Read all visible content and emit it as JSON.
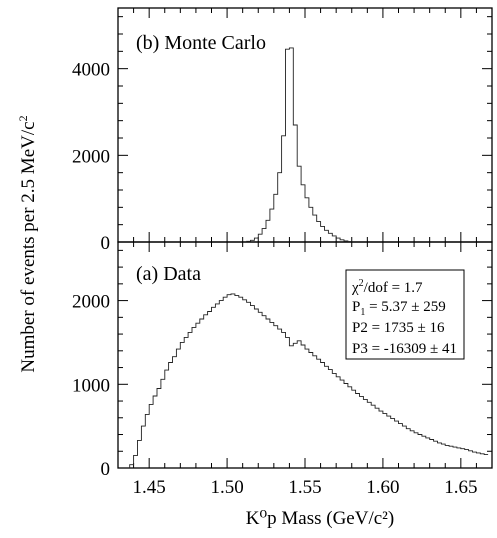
{
  "chart_data": [
    {
      "type": "histogram",
      "panel_label": "(b)  Monte Carlo",
      "ylabel": "Number of events per 2.5 MeV/c",
      "ylabel_sup": "2",
      "xlim": [
        1.43,
        1.67
      ],
      "ylim": [
        0,
        5400
      ],
      "yticks": [
        0,
        2000,
        4000
      ],
      "ytick_labels": [
        "0",
        "2000",
        "4000"
      ],
      "bin_width": 0.0025,
      "bins": [
        [
          1.5125,
          15
        ],
        [
          1.515,
          40
        ],
        [
          1.5175,
          90
        ],
        [
          1.52,
          180
        ],
        [
          1.5225,
          310
        ],
        [
          1.525,
          500
        ],
        [
          1.5275,
          760
        ],
        [
          1.53,
          1100
        ],
        [
          1.5325,
          1600
        ],
        [
          1.535,
          2450
        ],
        [
          1.5375,
          4450
        ],
        [
          1.54,
          4480
        ],
        [
          1.5425,
          2700
        ],
        [
          1.545,
          1750
        ],
        [
          1.5475,
          1320
        ],
        [
          1.55,
          1020
        ],
        [
          1.5525,
          800
        ],
        [
          1.555,
          620
        ],
        [
          1.5575,
          470
        ],
        [
          1.56,
          360
        ],
        [
          1.5625,
          270
        ],
        [
          1.565,
          200
        ],
        [
          1.5675,
          140
        ],
        [
          1.57,
          90
        ],
        [
          1.5725,
          50
        ],
        [
          1.575,
          25
        ],
        [
          1.5775,
          10
        ]
      ]
    },
    {
      "type": "histogram",
      "panel_label": "(a)  Data",
      "xlabel": "K⁰p Mass (GeV/c²)",
      "xlim": [
        1.43,
        1.67
      ],
      "ylim": [
        0,
        2700
      ],
      "xticks": [
        1.45,
        1.5,
        1.55,
        1.6,
        1.65
      ],
      "xtick_labels": [
        "1.45",
        "1.50",
        "1.55",
        "1.60",
        "1.65"
      ],
      "yticks": [
        0,
        1000,
        2000
      ],
      "ytick_labels": [
        "0",
        "1000",
        "2000"
      ],
      "bin_width": 0.0025,
      "fit_stats": [
        {
          "main": "χ",
          "sup": "2",
          "rest": "/dof = 1.7"
        },
        {
          "main": "P",
          "sub": "1",
          "rest": " = 5.37 ± 259"
        },
        {
          "main": "P2 = 1735 ± 16"
        },
        {
          "main": "P3 = -16309 ± 41"
        }
      ],
      "bins": [
        [
          1.4375,
          40
        ],
        [
          1.44,
          150
        ],
        [
          1.4425,
          330
        ],
        [
          1.445,
          500
        ],
        [
          1.4475,
          640
        ],
        [
          1.45,
          760
        ],
        [
          1.4525,
          860
        ],
        [
          1.455,
          950
        ],
        [
          1.4575,
          1060
        ],
        [
          1.46,
          1170
        ],
        [
          1.4625,
          1260
        ],
        [
          1.465,
          1330
        ],
        [
          1.4675,
          1420
        ],
        [
          1.47,
          1500
        ],
        [
          1.4725,
          1560
        ],
        [
          1.475,
          1620
        ],
        [
          1.4775,
          1680
        ],
        [
          1.48,
          1730
        ],
        [
          1.4825,
          1780
        ],
        [
          1.485,
          1830
        ],
        [
          1.4875,
          1870
        ],
        [
          1.49,
          1920
        ],
        [
          1.4925,
          1960
        ],
        [
          1.495,
          2000
        ],
        [
          1.4975,
          2040
        ],
        [
          1.5,
          2070
        ],
        [
          1.5025,
          2080
        ],
        [
          1.505,
          2060
        ],
        [
          1.5075,
          2040
        ],
        [
          1.51,
          2010
        ],
        [
          1.5125,
          1980
        ],
        [
          1.515,
          1940
        ],
        [
          1.5175,
          1900
        ],
        [
          1.52,
          1860
        ],
        [
          1.5225,
          1820
        ],
        [
          1.525,
          1780
        ],
        [
          1.5275,
          1740
        ],
        [
          1.53,
          1700
        ],
        [
          1.5325,
          1660
        ],
        [
          1.535,
          1620
        ],
        [
          1.5375,
          1560
        ],
        [
          1.54,
          1460
        ],
        [
          1.5425,
          1490
        ],
        [
          1.545,
          1520
        ],
        [
          1.5475,
          1470
        ],
        [
          1.55,
          1420
        ],
        [
          1.5525,
          1380
        ],
        [
          1.555,
          1340
        ],
        [
          1.5575,
          1300
        ],
        [
          1.56,
          1260
        ],
        [
          1.5625,
          1215
        ],
        [
          1.565,
          1175
        ],
        [
          1.5675,
          1130
        ],
        [
          1.57,
          1090
        ],
        [
          1.5725,
          1050
        ],
        [
          1.575,
          1010
        ],
        [
          1.5775,
          970
        ],
        [
          1.58,
          930
        ],
        [
          1.5825,
          890
        ],
        [
          1.585,
          855
        ],
        [
          1.5875,
          820
        ],
        [
          1.59,
          785
        ],
        [
          1.5925,
          750
        ],
        [
          1.595,
          715
        ],
        [
          1.5975,
          680
        ],
        [
          1.6,
          650
        ],
        [
          1.6025,
          620
        ],
        [
          1.605,
          590
        ],
        [
          1.6075,
          560
        ],
        [
          1.61,
          530
        ],
        [
          1.6125,
          500
        ],
        [
          1.615,
          470
        ],
        [
          1.6175,
          445
        ],
        [
          1.62,
          420
        ],
        [
          1.6225,
          400
        ],
        [
          1.625,
          380
        ],
        [
          1.6275,
          360
        ],
        [
          1.63,
          340
        ],
        [
          1.6325,
          320
        ],
        [
          1.635,
          300
        ],
        [
          1.6375,
          285
        ],
        [
          1.64,
          270
        ],
        [
          1.6425,
          260
        ],
        [
          1.645,
          250
        ],
        [
          1.6475,
          240
        ],
        [
          1.65,
          230
        ],
        [
          1.6525,
          220
        ],
        [
          1.655,
          205
        ],
        [
          1.6575,
          190
        ],
        [
          1.66,
          180
        ],
        [
          1.6625,
          170
        ],
        [
          1.665,
          160
        ]
      ]
    }
  ]
}
